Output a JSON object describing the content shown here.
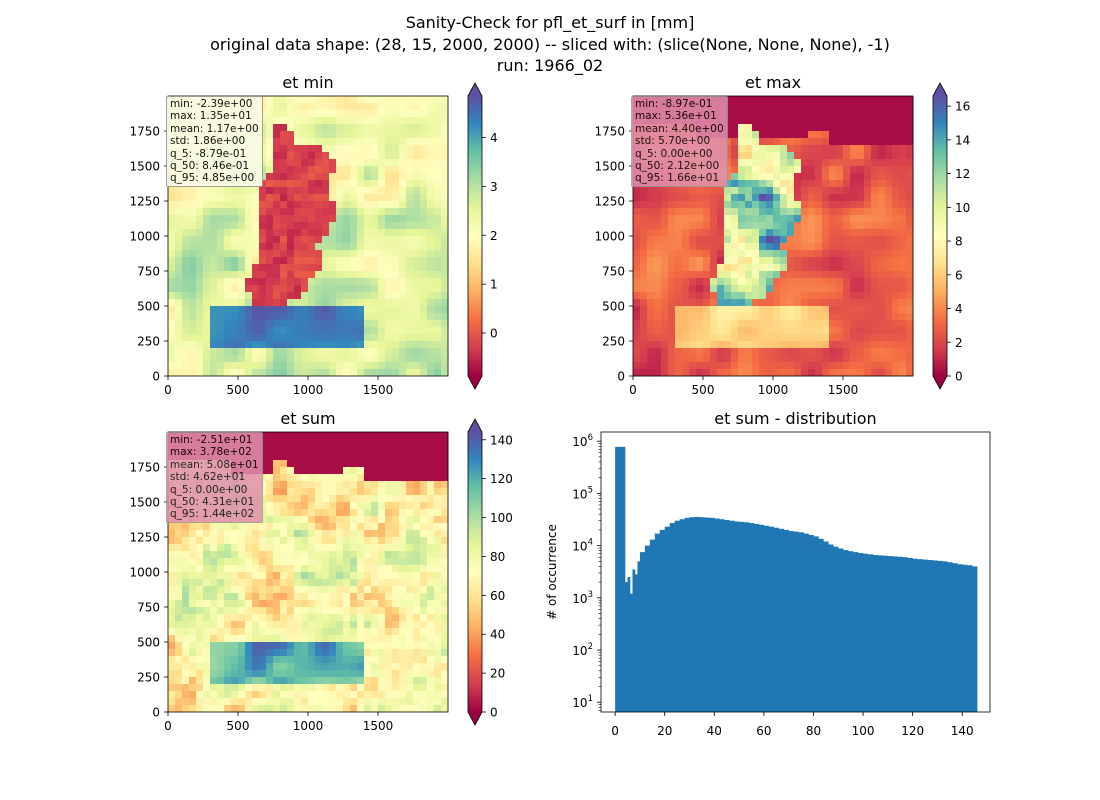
{
  "figure": {
    "title_lines": [
      "Sanity-Check for pfl_et_surf in [mm]",
      "original data shape: (28, 15, 2000, 2000) -- sliced with: (slice(None, None, None), -1)",
      "run: 1966_02"
    ]
  },
  "panels": {
    "et_min": {
      "title": "et min",
      "stats": [
        "min: -2.39e+00",
        "max: 1.35e+01",
        "mean: 1.17e+00",
        "std: 1.86e+00",
        "q_5: -8.79e-01",
        "q_50: 8.46e-01",
        "q_95: 4.85e+00"
      ],
      "x_ticks": [
        "0",
        "500",
        "1000",
        "1500"
      ],
      "y_ticks": [
        "0",
        "250",
        "500",
        "750",
        "1000",
        "1250",
        "1500",
        "1750"
      ],
      "colorbar_ticks": [
        "0",
        "1",
        "2",
        "3",
        "4"
      ],
      "colorbar_range": [
        -0.879,
        4.85
      ]
    },
    "et_max": {
      "title": "et max",
      "stats": [
        "min: -8.97e-01",
        "max: 5.36e+01",
        "mean: 4.40e+00",
        "std: 5.70e+00",
        "q_5: 0.00e+00",
        "q_50: 2.12e+00",
        "q_95: 1.66e+01"
      ],
      "x_ticks": [
        "0",
        "500",
        "1000",
        "1500"
      ],
      "y_ticks": [
        "0",
        "250",
        "500",
        "750",
        "1000",
        "1250",
        "1500",
        "1750"
      ],
      "colorbar_ticks": [
        "0",
        "2",
        "4",
        "6",
        "8",
        "10",
        "12",
        "14",
        "16"
      ],
      "colorbar_range": [
        0,
        16.6
      ]
    },
    "et_sum": {
      "title": "et sum",
      "stats": [
        "min: -2.51e+01",
        "max: 3.78e+02",
        "mean: 5.08e+01",
        "std: 4.62e+01",
        "q_5: 0.00e+00",
        "q_50: 4.31e+01",
        "q_95: 1.44e+02"
      ],
      "x_ticks": [
        "0",
        "500",
        "1000",
        "1500"
      ],
      "y_ticks": [
        "0",
        "250",
        "500",
        "750",
        "1000",
        "1250",
        "1500",
        "1750"
      ],
      "colorbar_ticks": [
        "0",
        "20",
        "40",
        "60",
        "80",
        "100",
        "120",
        "140"
      ],
      "colorbar_range": [
        0,
        144
      ]
    }
  },
  "colors": {
    "colormap": "Spectral",
    "histogram_bar": "#1f77b4",
    "stats_box_light": "#fbfbe6",
    "stats_box_pink": "#e090ad"
  },
  "chart_data": {
    "type": "bar",
    "title": "et sum - distribution",
    "xlabel": "",
    "ylabel": "# of occurrence",
    "yscale": "log",
    "xlim": [
      -5.7,
      151.2
    ],
    "ylim": [
      6.5,
      1500000
    ],
    "x_ticks": [
      "0",
      "20",
      "40",
      "60",
      "80",
      "100",
      "120",
      "140"
    ],
    "y_ticks": [
      "10^1",
      "10^2",
      "10^3",
      "10^4",
      "10^5",
      "10^6"
    ],
    "x": [
      0,
      4,
      5,
      6,
      7,
      8,
      9,
      10,
      12,
      14,
      16,
      18,
      20,
      22,
      24,
      26,
      28,
      30,
      32,
      34,
      36,
      38,
      40,
      42,
      44,
      46,
      48,
      50,
      52,
      54,
      56,
      58,
      60,
      62,
      64,
      66,
      68,
      70,
      72,
      74,
      76,
      78,
      80,
      82,
      84,
      86,
      88,
      90,
      92,
      94,
      96,
      98,
      100,
      102,
      104,
      106,
      108,
      110,
      112,
      114,
      116,
      118,
      120,
      122,
      124,
      126,
      128,
      130,
      132,
      134,
      136,
      138,
      140,
      142,
      144
    ],
    "values": [
      780000,
      2000,
      2500,
      1200,
      3500,
      2800,
      5000,
      7500,
      10000,
      13000,
      17000,
      20000,
      23000,
      27000,
      30000,
      32000,
      34000,
      35000,
      35500,
      35000,
      34500,
      34000,
      33000,
      32000,
      31000,
      30000,
      29000,
      28500,
      28000,
      27000,
      26000,
      25000,
      24000,
      23000,
      22000,
      21000,
      20000,
      19000,
      18500,
      18000,
      17000,
      16000,
      15000,
      13500,
      12000,
      10500,
      9500,
      8800,
      8200,
      7800,
      7500,
      7200,
      7000,
      6800,
      6600,
      6500,
      6400,
      6300,
      6200,
      6100,
      6000,
      5800,
      5600,
      5500,
      5400,
      5300,
      5200,
      5100,
      5000,
      4800,
      4600,
      4400,
      4300,
      4200,
      4000
    ]
  }
}
